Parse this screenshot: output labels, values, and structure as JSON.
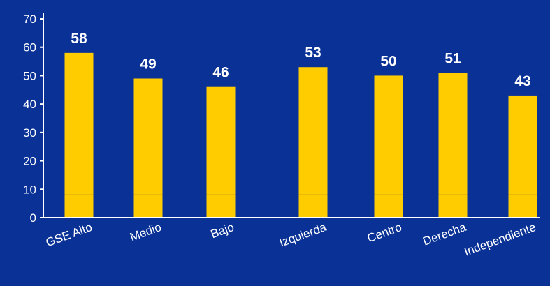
{
  "chart_data": {
    "type": "bar",
    "categories": [
      "GSE Alto",
      "Medio",
      "Bajo",
      "Izquierda",
      "Centro",
      "Derecha",
      "Independiente"
    ],
    "values": [
      58,
      49,
      46,
      53,
      50,
      51,
      43
    ],
    "data_labels": [
      "58",
      "49",
      "46",
      "53",
      "50",
      "51",
      "43"
    ],
    "ylim": [
      0,
      70
    ],
    "yticks": [
      0,
      10,
      20,
      30,
      40,
      50,
      60,
      70
    ],
    "grid": false,
    "legend": "none",
    "colors": {
      "background": "#0a3296",
      "bar": "#ffcc00",
      "axis": "#ffffff",
      "text": "#ffffff"
    }
  }
}
